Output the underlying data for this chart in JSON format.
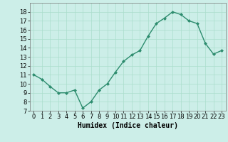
{
  "x": [
    0,
    1,
    2,
    3,
    4,
    5,
    6,
    7,
    8,
    9,
    10,
    11,
    12,
    13,
    14,
    15,
    16,
    17,
    18,
    19,
    20,
    21,
    22,
    23
  ],
  "y": [
    11,
    10.5,
    9.7,
    9,
    9,
    9.3,
    7.3,
    8,
    9.3,
    10,
    11.3,
    12.5,
    13.2,
    13.7,
    15.3,
    16.7,
    17.3,
    18,
    17.7,
    17,
    16.7,
    14.5,
    13.3,
    13.7
  ],
  "line_color": "#2d8c6e",
  "marker": "D",
  "marker_size": 2,
  "bg_color": "#cceee8",
  "grid_color": "#aaddcc",
  "xlabel": "Humidex (Indice chaleur)",
  "ylim": [
    7,
    19
  ],
  "xlim": [
    -0.5,
    23.5
  ],
  "yticks": [
    7,
    8,
    9,
    10,
    11,
    12,
    13,
    14,
    15,
    16,
    17,
    18
  ],
  "xticks": [
    0,
    1,
    2,
    3,
    4,
    5,
    6,
    7,
    8,
    9,
    10,
    11,
    12,
    13,
    14,
    15,
    16,
    17,
    18,
    19,
    20,
    21,
    22,
    23
  ],
  "label_fontsize": 7,
  "tick_fontsize": 6,
  "linewidth": 1.0
}
